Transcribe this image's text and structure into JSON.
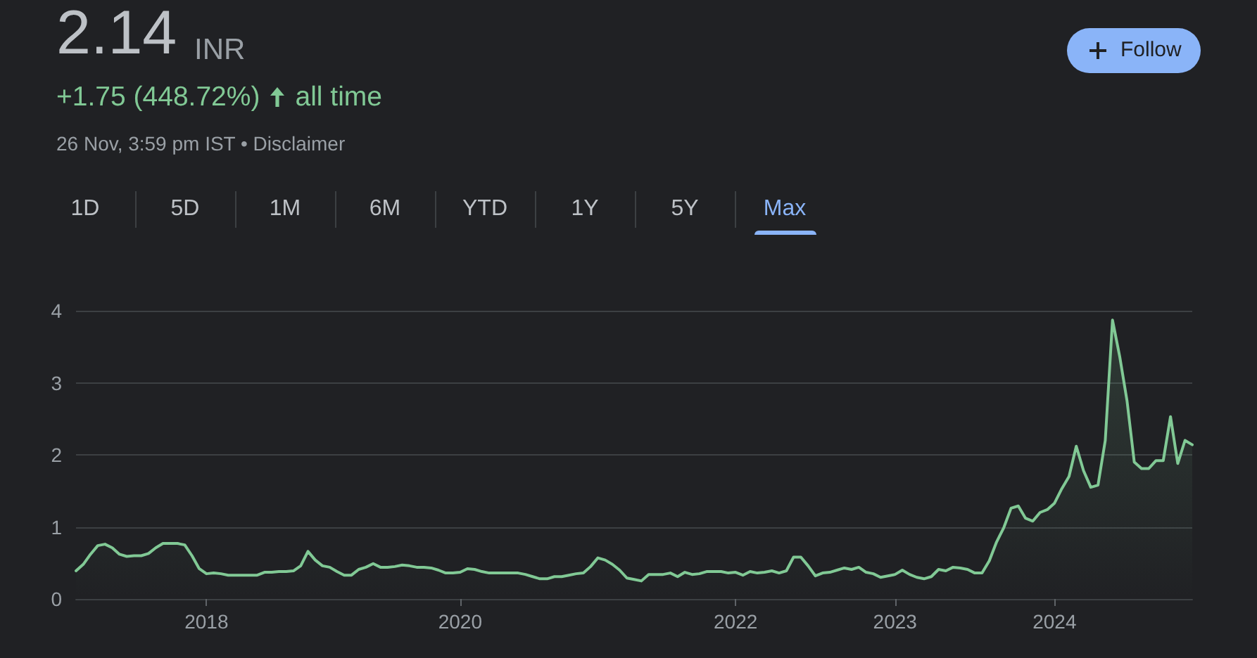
{
  "chart_data": {
    "type": "area",
    "title": "2.14",
    "annotations": [
      "INR",
      "+1.75 (448.72%)",
      "all time",
      "26 Nov, 3:59 pm IST • Disclaimer",
      "1D",
      "5D",
      "1M",
      "6M",
      "YTD",
      "1Y",
      "5Y",
      "Max",
      "Follow"
    ],
    "categories": [
      null,
      null,
      null,
      null,
      null,
      null,
      null,
      null,
      null,
      null,
      null,
      null,
      null,
      null,
      null,
      null,
      null,
      null,
      "2018",
      null,
      null,
      null,
      null,
      null,
      null,
      null,
      null,
      null,
      null,
      null,
      null,
      null,
      null,
      null,
      null,
      null,
      null,
      null,
      null,
      null,
      null,
      null,
      null,
      null,
      null,
      null,
      null,
      null,
      null,
      null,
      null,
      null,
      null,
      "2020",
      null,
      null,
      null,
      null,
      null,
      null,
      null,
      null,
      null,
      null,
      null,
      null,
      null,
      null,
      null,
      null,
      null,
      null,
      null,
      null,
      null,
      null,
      null,
      null,
      null,
      null,
      null,
      null,
      null,
      null,
      null,
      null,
      null,
      null,
      null,
      null,
      null,
      "2022",
      null,
      null,
      null,
      null,
      null,
      null,
      null,
      null,
      null,
      null,
      null,
      null,
      null,
      null,
      null,
      null,
      null,
      null,
      null,
      null,
      null,
      "2023",
      null,
      null,
      null,
      null,
      null,
      null,
      null,
      null,
      null,
      null,
      null,
      null,
      null,
      null,
      null,
      null,
      null,
      null,
      null,
      null,
      null,
      "2024",
      null,
      null,
      null,
      null,
      null,
      null,
      null,
      null,
      null,
      null,
      null,
      null,
      null,
      null,
      null,
      null,
      null,
      null,
      null
    ],
    "values": [
      0.39,
      0.48,
      0.62,
      0.74,
      0.76,
      0.71,
      0.62,
      0.59,
      0.6,
      0.6,
      0.63,
      0.71,
      0.77,
      0.77,
      0.77,
      0.75,
      0.6,
      0.42,
      0.35,
      0.36,
      0.35,
      0.33,
      0.33,
      0.33,
      0.33,
      0.33,
      0.37,
      0.37,
      0.38,
      0.38,
      0.39,
      0.46,
      0.66,
      0.54,
      0.46,
      0.44,
      0.38,
      0.33,
      0.33,
      0.41,
      0.44,
      0.49,
      0.44,
      0.44,
      0.45,
      0.47,
      0.46,
      0.44,
      0.44,
      0.43,
      0.4,
      0.36,
      0.36,
      0.37,
      0.42,
      0.41,
      0.38,
      0.36,
      0.36,
      0.36,
      0.36,
      0.36,
      0.34,
      0.31,
      0.28,
      0.28,
      0.31,
      0.31,
      0.33,
      0.35,
      0.36,
      0.45,
      0.57,
      0.54,
      0.48,
      0.4,
      0.29,
      0.27,
      0.25,
      0.34,
      0.34,
      0.34,
      0.36,
      0.31,
      0.37,
      0.34,
      0.35,
      0.38,
      0.38,
      0.38,
      0.36,
      0.37,
      0.33,
      0.38,
      0.36,
      0.37,
      0.39,
      0.36,
      0.39,
      0.58,
      0.58,
      0.46,
      0.32,
      0.36,
      0.37,
      0.4,
      0.43,
      0.41,
      0.44,
      0.37,
      0.35,
      0.3,
      0.32,
      0.34,
      0.4,
      0.34,
      0.3,
      0.28,
      0.31,
      0.41,
      0.39,
      0.44,
      0.43,
      0.41,
      0.36,
      0.36,
      0.53,
      0.79,
      0.99,
      1.26,
      1.29,
      1.12,
      1.08,
      1.2,
      1.24,
      1.33,
      1.53,
      1.7,
      2.12,
      1.78,
      1.55,
      1.58,
      2.2,
      3.87,
      3.36,
      2.75,
      1.9,
      1.81,
      1.81,
      1.92,
      1.92,
      2.53,
      1.88,
      2.2,
      2.14
    ],
    "color": "#81c995",
    "ylim": [
      0,
      4
    ],
    "yticks": [
      0,
      1,
      2,
      3,
      4
    ],
    "grid": "y",
    "marker": "none"
  }
}
